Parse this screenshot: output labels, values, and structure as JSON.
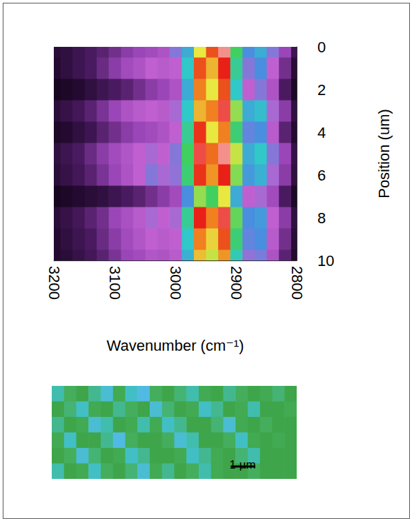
{
  "chart_data": [
    {
      "type": "heatmap",
      "x_label": "Wavenumber (cm⁻¹)",
      "y_label": "Position (um)",
      "x": [
        2800,
        2820,
        2840,
        2860,
        2880,
        2900,
        2920,
        2940,
        2960,
        2980,
        3000,
        3020,
        3040,
        3060,
        3080,
        3100,
        3120,
        3140,
        3160,
        3180,
        3200
      ],
      "y": [
        0,
        1,
        2,
        3,
        4,
        5,
        6,
        7,
        8,
        9,
        10
      ],
      "z": [
        [
          8,
          20,
          35,
          45,
          40,
          60,
          95,
          85,
          70,
          45,
          35,
          25,
          22,
          20,
          18,
          15,
          12,
          10,
          8,
          6,
          5
        ],
        [
          5,
          15,
          30,
          40,
          35,
          55,
          90,
          75,
          85,
          50,
          30,
          28,
          30,
          25,
          22,
          18,
          14,
          10,
          8,
          6,
          4
        ],
        [
          3,
          10,
          25,
          35,
          30,
          50,
          85,
          70,
          80,
          45,
          25,
          20,
          18,
          15,
          12,
          10,
          8,
          6,
          4,
          3,
          2
        ],
        [
          6,
          18,
          32,
          48,
          45,
          65,
          92,
          80,
          75,
          50,
          32,
          28,
          30,
          28,
          25,
          20,
          16,
          12,
          9,
          7,
          5
        ],
        [
          4,
          12,
          28,
          40,
          38,
          58,
          80,
          70,
          88,
          55,
          30,
          25,
          22,
          20,
          18,
          15,
          12,
          8,
          6,
          4,
          3
        ],
        [
          7,
          20,
          35,
          50,
          45,
          68,
          95,
          82,
          92,
          60,
          35,
          30,
          32,
          30,
          26,
          22,
          18,
          14,
          10,
          8,
          6
        ],
        [
          6,
          18,
          32,
          46,
          42,
          64,
          90,
          78,
          88,
          58,
          34,
          32,
          35,
          30,
          25,
          20,
          16,
          12,
          9,
          7,
          5
        ],
        [
          3,
          10,
          22,
          32,
          30,
          45,
          70,
          60,
          65,
          40,
          22,
          18,
          15,
          12,
          10,
          8,
          6,
          5,
          4,
          3,
          2
        ],
        [
          6,
          18,
          30,
          42,
          40,
          62,
          92,
          80,
          90,
          55,
          32,
          30,
          32,
          28,
          24,
          20,
          15,
          12,
          9,
          7,
          5
        ],
        [
          5,
          15,
          28,
          40,
          38,
          58,
          85,
          72,
          80,
          50,
          30,
          28,
          30,
          26,
          22,
          18,
          14,
          10,
          8,
          6,
          4
        ],
        [
          4,
          12,
          25,
          36,
          34,
          52,
          78,
          68,
          74,
          46,
          28,
          25,
          26,
          22,
          20,
          16,
          12,
          9,
          7,
          5,
          4
        ]
      ],
      "zlim": [
        0,
        100
      ],
      "xlim": [
        2800,
        3200
      ],
      "xticks": [
        2800,
        2900,
        3000,
        3100,
        3200
      ],
      "ylim": [
        0,
        10
      ],
      "yticks": [
        0,
        2,
        4,
        6,
        8,
        10
      ]
    },
    {
      "type": "heatmap",
      "xlim": [
        0,
        10
      ],
      "ylim": [
        0,
        4
      ],
      "zlim": [
        0,
        1
      ],
      "tick_labels": false,
      "heights": [
        [
          0.6,
          0.3,
          0.1,
          0.5,
          0.8,
          0.2,
          0.7,
          0.9,
          0.3,
          0.1,
          0.4,
          0.6,
          0.2,
          0.1,
          0.5,
          0.3,
          0.1,
          0.2,
          0.4,
          0.1
        ],
        [
          0.1,
          0.4,
          0.7,
          0.2,
          0.1,
          0.5,
          0.3,
          0.1,
          0.8,
          0.4,
          0.1,
          0.2,
          0.7,
          0.5,
          0.1,
          0.2,
          0.6,
          0.1,
          0.1,
          0.2
        ],
        [
          0.5,
          0.1,
          0.2,
          0.8,
          0.6,
          0.1,
          0.2,
          0.6,
          0.2,
          0.7,
          0.5,
          0.1,
          0.1,
          0.4,
          0.8,
          0.2,
          0.1,
          0.3,
          0.1,
          0.1
        ],
        [
          0.2,
          0.7,
          0.1,
          0.1,
          0.5,
          0.9,
          0.3,
          0.1,
          0.1,
          0.3,
          0.8,
          0.6,
          0.1,
          0.1,
          0.3,
          0.7,
          0.2,
          0.1,
          0.2,
          0.1
        ],
        [
          0.1,
          0.3,
          0.8,
          0.4,
          0.1,
          0.2,
          0.7,
          0.5,
          0.1,
          0.1,
          0.2,
          0.7,
          0.5,
          0.2,
          0.1,
          0.4,
          0.6,
          0.1,
          0.1,
          0.1
        ],
        [
          0.6,
          0.1,
          0.2,
          0.7,
          0.3,
          0.1,
          0.4,
          0.8,
          0.2,
          0.5,
          0.1,
          0.3,
          0.6,
          0.2,
          0.1,
          0.1,
          0.3,
          0.1,
          0.1,
          0.1
        ]
      ],
      "scale_bar": {
        "value": 1,
        "label": "1 µm"
      }
    }
  ]
}
